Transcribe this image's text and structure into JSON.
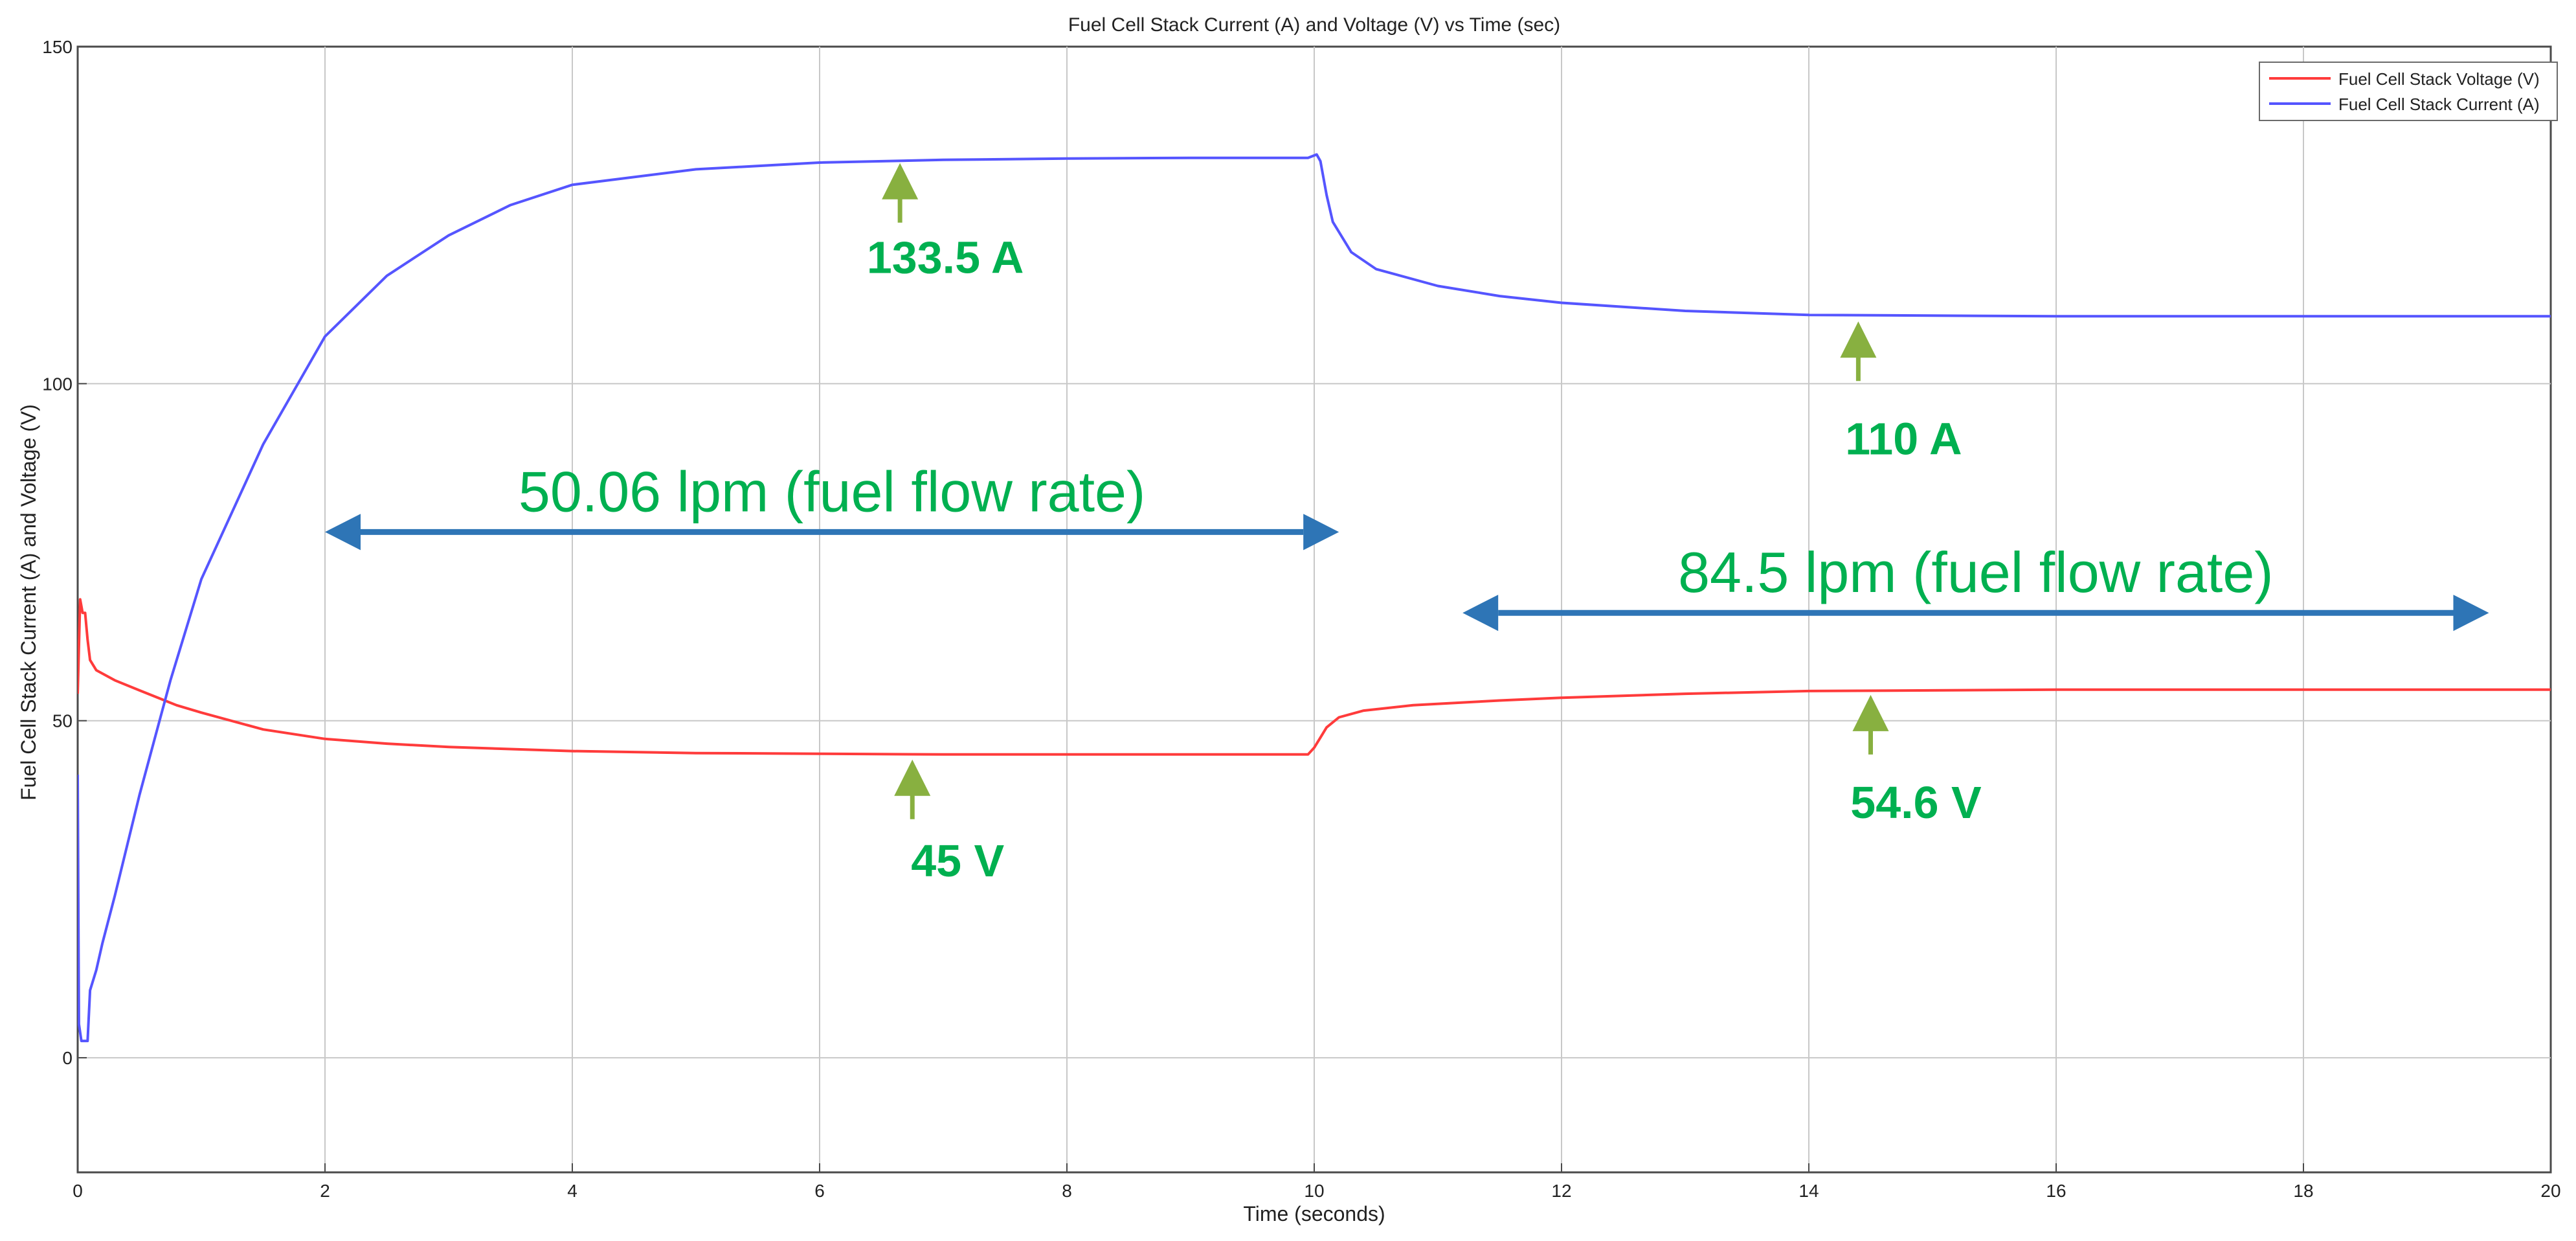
{
  "chart_data": {
    "type": "line",
    "title": "Fuel Cell Stack Current (A) and Voltage (V) vs Time (sec)",
    "xlabel": "Time (seconds)",
    "ylabel": "Fuel Cell Stack Current (A) and Voltage (V)",
    "xlim": [
      0,
      20
    ],
    "ylim": [
      -17,
      150
    ],
    "x_ticks": [
      0,
      2,
      4,
      6,
      8,
      10,
      12,
      14,
      16,
      18,
      20
    ],
    "y_ticks": [
      0,
      50,
      100,
      150
    ],
    "x_tick_labels": [
      "0",
      "2",
      "4",
      "6",
      "8",
      "10",
      "12",
      "14",
      "16",
      "18",
      "20"
    ],
    "y_tick_labels": [
      "0",
      "50",
      "100",
      "150"
    ],
    "grid": true,
    "legend_position": "top-right",
    "series": [
      {
        "name": "Fuel Cell Stack Voltage (V)",
        "color": "#ff3b3b",
        "x": [
          0,
          0.02,
          0.04,
          0.06,
          0.08,
          0.1,
          0.15,
          0.3,
          0.5,
          0.8,
          1.0,
          1.5,
          2.0,
          2.5,
          3.0,
          4.0,
          5.0,
          6.0,
          7.0,
          8.0,
          9.0,
          9.95,
          10.0,
          10.05,
          10.1,
          10.2,
          10.4,
          10.8,
          11.5,
          12.0,
          13.0,
          14.0,
          15.0,
          16.0,
          18.0,
          20.0
        ],
        "y": [
          54,
          68,
          66,
          66,
          62,
          59,
          57.5,
          56,
          54.5,
          52.3,
          51.2,
          48.7,
          47.3,
          46.6,
          46.1,
          45.5,
          45.2,
          45.1,
          45.0,
          45.0,
          45.0,
          45.0,
          46.0,
          47.5,
          49.0,
          50.5,
          51.5,
          52.3,
          53.0,
          53.4,
          54.0,
          54.4,
          54.5,
          54.6,
          54.6,
          54.6
        ]
      },
      {
        "name": "Fuel Cell Stack Current (A)",
        "color": "#5555ff",
        "x": [
          0,
          0.01,
          0.03,
          0.05,
          0.08,
          0.1,
          0.15,
          0.2,
          0.3,
          0.5,
          0.75,
          1.0,
          1.5,
          2.0,
          2.5,
          3.0,
          3.5,
          4.0,
          5.0,
          6.0,
          7.0,
          8.0,
          9.0,
          9.95,
          10.02,
          10.05,
          10.1,
          10.15,
          10.3,
          10.5,
          11.0,
          11.5,
          12.0,
          13.0,
          14.0,
          16.0,
          18.0,
          20.0
        ],
        "y": [
          42,
          5,
          2.5,
          2.5,
          2.5,
          10,
          13,
          17,
          24,
          39,
          56,
          71,
          91,
          107,
          116,
          122,
          126.5,
          129.5,
          131.8,
          132.8,
          133.2,
          133.4,
          133.5,
          133.5,
          134,
          133,
          128,
          124,
          119.5,
          117,
          114.5,
          113,
          112,
          110.8,
          110.2,
          110,
          110,
          110
        ]
      }
    ],
    "annotations": {
      "current_high": "133.5 A",
      "current_low": "110 A",
      "voltage_low": "45 V",
      "voltage_high": "54.6 V",
      "flow_1": "50.06 lpm (fuel flow rate)",
      "flow_2": "84.5 lpm (fuel flow rate)"
    },
    "annotation_points": {
      "current_high": [
        6.65,
        133.5
      ],
      "current_low": [
        14.4,
        110
      ],
      "voltage_low": [
        6.75,
        45
      ],
      "voltage_high": [
        14.5,
        54.6
      ]
    },
    "flow_ranges": {
      "flow_1": [
        2,
        10.2,
        78
      ],
      "flow_2": [
        11.2,
        19.5,
        66
      ]
    },
    "annotation_color": "#00b050",
    "arrow_color": "#88b040",
    "flow_arrow_color": "#2e75b6"
  }
}
